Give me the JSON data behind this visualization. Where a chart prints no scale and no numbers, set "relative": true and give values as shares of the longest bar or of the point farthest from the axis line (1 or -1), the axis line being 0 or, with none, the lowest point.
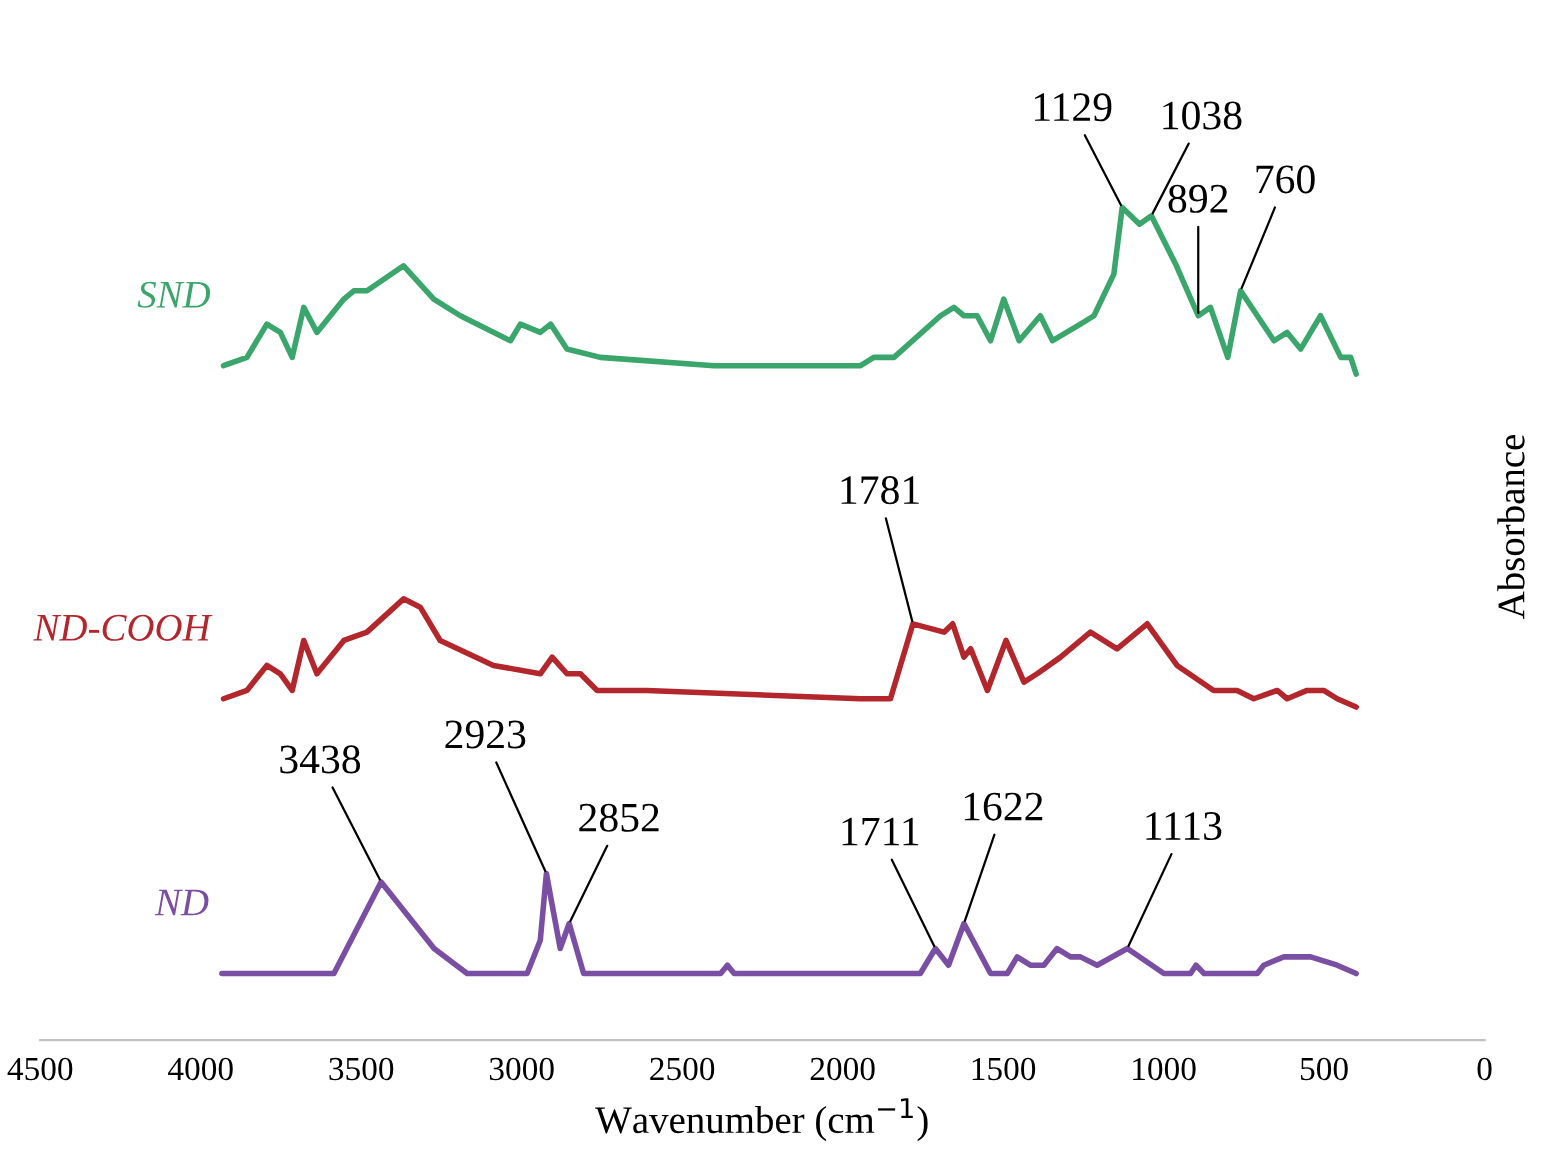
{
  "chart_data": {
    "type": "line",
    "relative": true,
    "xlabel": "Wavenumber (cm$^{−1}$)",
    "y2label": "Absorbance",
    "xlim": [
      4500,
      0
    ],
    "xticks": [
      4500,
      4000,
      3500,
      3000,
      2500,
      2000,
      1500,
      1000,
      500,
      0
    ],
    "grid": false,
    "marker": "none",
    "line_style": "solid",
    "series": [
      {
        "name": "SND",
        "color": "#3aa66b",
        "x": [
          3929,
          3856,
          3794,
          3752,
          3715,
          3679,
          3638,
          3554,
          3523,
          3482,
          3368,
          3274,
          3191,
          3035,
          3004,
          2942,
          2910,
          2859,
          2755,
          2401,
          1944,
          1903,
          1840,
          1695,
          1653,
          1622,
          1581,
          1539,
          1498,
          1450,
          1384,
          1346,
          1259,
          1217,
          1155,
          1129,
          1075,
          1038,
          960,
          892,
          854,
          800,
          760,
          656,
          615,
          573,
          511,
          448,
          417,
          400
        ],
        "values": [
          0.81,
          0.82,
          0.86,
          0.85,
          0.82,
          0.88,
          0.85,
          0.89,
          0.9,
          0.9,
          0.93,
          0.89,
          0.87,
          0.84,
          0.86,
          0.85,
          0.86,
          0.83,
          0.82,
          0.81,
          0.81,
          0.82,
          0.82,
          0.87,
          0.88,
          0.87,
          0.87,
          0.84,
          0.89,
          0.84,
          0.87,
          0.84,
          0.86,
          0.87,
          0.92,
          1.0,
          0.98,
          0.99,
          0.93,
          0.87,
          0.88,
          0.82,
          0.9,
          0.84,
          0.85,
          0.83,
          0.87,
          0.82,
          0.82,
          0.8
        ]
      },
      {
        "name": "ND-COOH",
        "color": "#b3262c",
        "x": [
          3929,
          3856,
          3794,
          3752,
          3715,
          3679,
          3638,
          3554,
          3482,
          3368,
          3316,
          3254,
          3088,
          2942,
          2905,
          2859,
          2817,
          2765,
          2610,
          1944,
          1851,
          1781,
          1684,
          1657,
          1622,
          1601,
          1549,
          1491,
          1435,
          1394,
          1321,
          1228,
          1145,
          1051,
          958,
          844,
          771,
          719,
          646,
          615,
          553,
          501,
          459,
          400
        ],
        "values": [
          0.41,
          0.42,
          0.45,
          0.44,
          0.42,
          0.48,
          0.44,
          0.48,
          0.49,
          0.53,
          0.52,
          0.48,
          0.45,
          0.44,
          0.46,
          0.44,
          0.44,
          0.42,
          0.42,
          0.41,
          0.41,
          0.5,
          0.49,
          0.5,
          0.46,
          0.47,
          0.42,
          0.48,
          0.43,
          0.44,
          0.46,
          0.49,
          0.47,
          0.5,
          0.45,
          0.42,
          0.42,
          0.41,
          0.42,
          0.41,
          0.42,
          0.42,
          0.41,
          0.4
        ]
      },
      {
        "name": "ND",
        "color": "#7a4fa3",
        "x": [
          3934,
          3585,
          3438,
          3273,
          3170,
          2983,
          2942,
          2923,
          2880,
          2852,
          2807,
          2380,
          2359,
          2338,
          1984,
          1758,
          1711,
          1670,
          1622,
          1539,
          1487,
          1456,
          1415,
          1373,
          1332,
          1290,
          1259,
          1207,
          1113,
          999,
          916,
          899,
          874,
          708,
          688,
          625,
          542,
          459,
          400
        ],
        "values": [
          0.08,
          0.08,
          0.19,
          0.11,
          0.08,
          0.08,
          0.12,
          0.2,
          0.11,
          0.14,
          0.08,
          0.08,
          0.09,
          0.08,
          0.08,
          0.08,
          0.11,
          0.09,
          0.14,
          0.08,
          0.08,
          0.1,
          0.09,
          0.09,
          0.11,
          0.1,
          0.1,
          0.09,
          0.11,
          0.08,
          0.08,
          0.09,
          0.08,
          0.08,
          0.09,
          0.1,
          0.1,
          0.09,
          0.08
        ]
      }
    ],
    "annotations": [
      {
        "text": "1129",
        "x": 1129,
        "y": 1.0
      },
      {
        "text": "1038",
        "x": 1038,
        "y": 0.99
      },
      {
        "text": "892",
        "x": 892,
        "y": 0.87
      },
      {
        "text": "760",
        "x": 760,
        "y": 0.9
      },
      {
        "text": "1781",
        "x": 1781,
        "y": 0.5
      },
      {
        "text": "3438",
        "x": 3438,
        "y": 0.19
      },
      {
        "text": "2923",
        "x": 2923,
        "y": 0.2
      },
      {
        "text": "2852",
        "x": 2852,
        "y": 0.14
      },
      {
        "text": "1711",
        "x": 1711,
        "y": 0.11
      },
      {
        "text": "1622",
        "x": 1622,
        "y": 0.14
      },
      {
        "text": "1113",
        "x": 1113,
        "y": 0.11
      }
    ]
  }
}
